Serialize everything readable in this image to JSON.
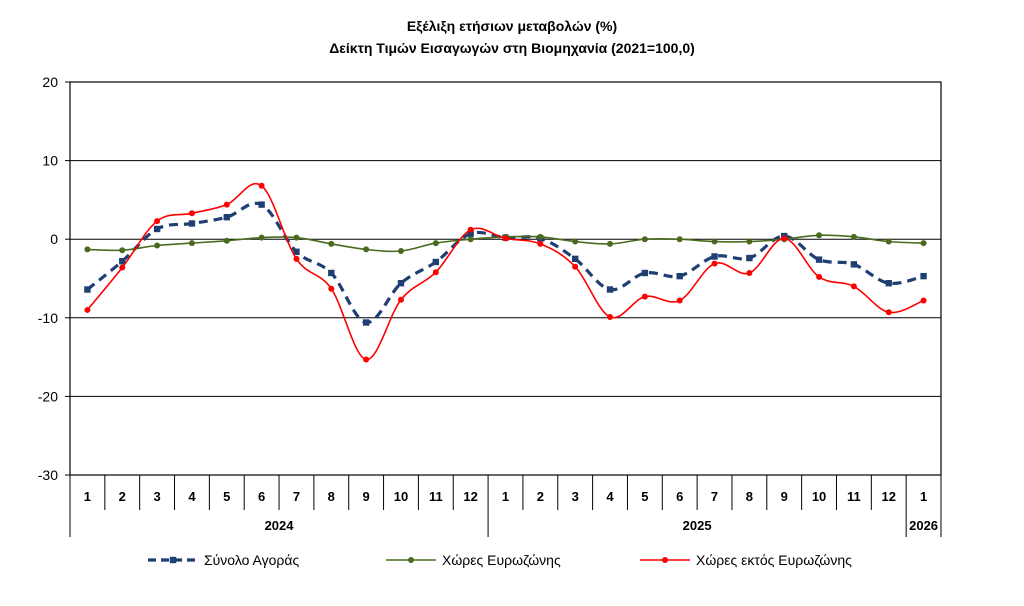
{
  "chart_data": {
    "type": "line",
    "title": "Εξέλιξη ετήσιων μεταβολών (%)",
    "subtitle": "Δείκτη Τιμών Εισαγωγών στη Βιομηχανία (2021=100,0)",
    "ylim": [
      -30,
      20
    ],
    "yticks": [
      20,
      10,
      0,
      -10,
      -20,
      -30
    ],
    "grid": true,
    "legend_position": "bottom",
    "categories": [
      "1",
      "2",
      "3",
      "4",
      "5",
      "6",
      "7",
      "8",
      "9",
      "10",
      "11",
      "12",
      "1",
      "2",
      "3",
      "4",
      "5",
      "6",
      "7",
      "8",
      "9",
      "10",
      "11",
      "12",
      "1"
    ],
    "year_groups": [
      {
        "label": "2024",
        "count": 12
      },
      {
        "label": "2025",
        "count": 12
      },
      {
        "label": "2026",
        "count": 1
      }
    ],
    "series": [
      {
        "name": "Σύνολο Αγοράς",
        "color": "#1f3f73",
        "style": "dashed-square",
        "values": [
          -6.4,
          -2.8,
          1.3,
          2.0,
          2.8,
          4.4,
          -1.6,
          -4.3,
          -10.6,
          -5.6,
          -2.9,
          0.7,
          0.2,
          0.1,
          -2.5,
          -6.4,
          -4.3,
          -4.7,
          -2.2,
          -2.4,
          0.4,
          -2.6,
          -3.2,
          -5.6,
          -4.7
        ]
      },
      {
        "name": "Χώρες Ευρωζώνης",
        "color": "#4a6b1f",
        "style": "solid-dot",
        "values": [
          -1.3,
          -1.4,
          -0.8,
          -0.5,
          -0.2,
          0.2,
          0.2,
          -0.6,
          -1.3,
          -1.5,
          -0.5,
          0.0,
          0.3,
          0.3,
          -0.3,
          -0.6,
          0.0,
          0.0,
          -0.3,
          -0.3,
          0.0,
          0.5,
          0.3,
          -0.3,
          -0.5
        ]
      },
      {
        "name": "Χώρες εκτός Ευρωζώνης",
        "color": "#ff0000",
        "style": "solid-dot",
        "values": [
          -9.0,
          -3.6,
          2.3,
          3.3,
          4.4,
          6.8,
          -2.5,
          -6.3,
          -15.3,
          -7.7,
          -4.2,
          1.2,
          0.1,
          -0.6,
          -3.5,
          -9.9,
          -7.3,
          -7.8,
          -3.1,
          -4.3,
          0.1,
          -4.8,
          -6.0,
          -9.3,
          -7.8
        ]
      }
    ]
  }
}
